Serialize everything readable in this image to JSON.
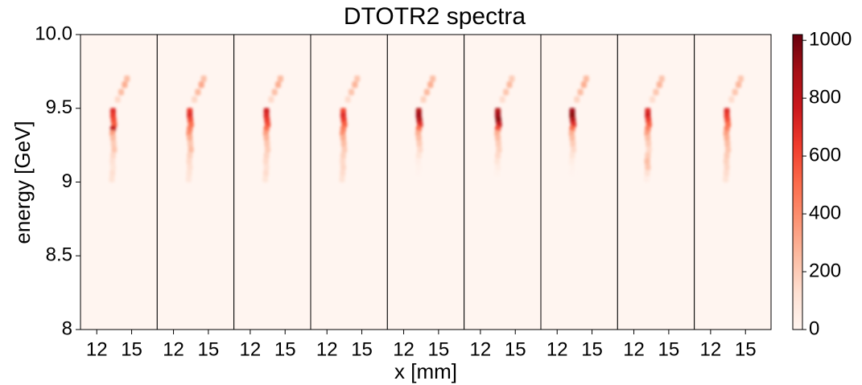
{
  "chart_data": {
    "type": "heatmap",
    "title": "DTOTR2 spectra",
    "xlabel": "x [mm]",
    "ylabel": "energy [GeV]",
    "colormap": "Reds",
    "ylim": [
      8,
      10
    ],
    "yticks": [
      8,
      8.5,
      9,
      9.5,
      {
        "value": 10,
        "label": "10.0"
      }
    ],
    "colorbar": {
      "lim": [
        0,
        1020
      ],
      "ticks": [
        0,
        200,
        400,
        600,
        800,
        1000
      ]
    },
    "panels": [
      {
        "xlim": [
          10.6,
          17.2
        ],
        "xticks": [
          12,
          15
        ],
        "x": [
          13.4,
          13.4,
          13.45,
          13.5,
          13.4,
          13.35,
          13.4,
          13.45,
          13.5,
          13.4,
          13.35,
          13.4,
          13.35,
          13.3,
          13.8,
          14.1,
          14.4,
          14.6
        ],
        "y": [
          9.48,
          9.45,
          9.42,
          9.39,
          9.36,
          9.33,
          9.3,
          9.26,
          9.22,
          9.18,
          9.14,
          9.1,
          9.06,
          9.02,
          9.56,
          9.61,
          9.66,
          9.7
        ],
        "values": [
          700,
          650,
          600,
          550,
          800,
          350,
          250,
          200,
          220,
          150,
          120,
          100,
          130,
          110,
          150,
          250,
          300,
          250
        ]
      },
      {
        "xlim": [
          10.6,
          17.2
        ],
        "xticks": [
          12,
          15
        ],
        "x": [
          13.4,
          13.4,
          13.45,
          13.5,
          13.4,
          13.35,
          13.4,
          13.45,
          13.5,
          13.4,
          13.35,
          13.4,
          13.35,
          13.3,
          13.8,
          14.1,
          14.4,
          14.6
        ],
        "y": [
          9.48,
          9.45,
          9.42,
          9.39,
          9.36,
          9.33,
          9.3,
          9.26,
          9.22,
          9.18,
          9.14,
          9.1,
          9.06,
          9.02,
          9.56,
          9.61,
          9.66,
          9.7
        ],
        "values": [
          650,
          700,
          600,
          500,
          450,
          400,
          300,
          220,
          250,
          180,
          150,
          130,
          110,
          90,
          160,
          260,
          320,
          240
        ]
      },
      {
        "xlim": [
          10.6,
          17.2
        ],
        "xticks": [
          12,
          15
        ],
        "x": [
          13.4,
          13.4,
          13.45,
          13.5,
          13.4,
          13.35,
          13.4,
          13.45,
          13.5,
          13.4,
          13.35,
          13.4,
          13.35,
          13.3,
          13.8,
          14.1,
          14.4,
          14.6
        ],
        "y": [
          9.48,
          9.45,
          9.42,
          9.39,
          9.36,
          9.33,
          9.3,
          9.26,
          9.22,
          9.18,
          9.14,
          9.1,
          9.06,
          9.02,
          9.56,
          9.61,
          9.66,
          9.7
        ],
        "values": [
          750,
          700,
          650,
          600,
          500,
          350,
          280,
          220,
          200,
          170,
          150,
          120,
          140,
          100,
          150,
          240,
          300,
          260
        ]
      },
      {
        "xlim": [
          10.6,
          17.2
        ],
        "xticks": [
          12,
          15
        ],
        "x": [
          13.4,
          13.4,
          13.45,
          13.5,
          13.4,
          13.35,
          13.4,
          13.45,
          13.5,
          13.4,
          13.35,
          13.4,
          13.35,
          13.3,
          13.8,
          14.1,
          14.4,
          14.6
        ],
        "y": [
          9.48,
          9.45,
          9.42,
          9.39,
          9.36,
          9.33,
          9.3,
          9.26,
          9.22,
          9.18,
          9.14,
          9.1,
          9.06,
          9.02,
          9.56,
          9.61,
          9.66,
          9.7
        ],
        "values": [
          600,
          700,
          650,
          550,
          450,
          400,
          300,
          250,
          200,
          180,
          150,
          160,
          140,
          110,
          140,
          230,
          280,
          220
        ]
      },
      {
        "xlim": [
          10.6,
          17.2
        ],
        "xticks": [
          12,
          15
        ],
        "x": [
          13.3,
          13.3,
          13.35,
          13.4,
          13.3,
          13.25,
          13.3,
          13.35,
          13.4,
          13.3,
          13.25,
          13.3,
          13.25,
          13.2,
          13.7,
          14.0,
          14.3,
          14.5
        ],
        "y": [
          9.48,
          9.45,
          9.42,
          9.39,
          9.36,
          9.33,
          9.3,
          9.26,
          9.22,
          9.18,
          9.14,
          9.1,
          9.06,
          9.02,
          9.56,
          9.61,
          9.66,
          9.7
        ],
        "values": [
          850,
          900,
          850,
          700,
          500,
          300,
          250,
          200,
          150,
          100,
          40,
          20,
          10,
          0,
          180,
          260,
          300,
          250
        ]
      },
      {
        "xlim": [
          10.6,
          17.2
        ],
        "xticks": [
          12,
          15
        ],
        "x": [
          13.5,
          13.5,
          13.55,
          13.6,
          13.5,
          13.45,
          13.5,
          13.55,
          13.6,
          13.5,
          13.45,
          13.5,
          13.45,
          13.4,
          13.9,
          14.2,
          14.5,
          14.7
        ],
        "y": [
          9.48,
          9.45,
          9.42,
          9.39,
          9.36,
          9.33,
          9.3,
          9.26,
          9.22,
          9.18,
          9.14,
          9.1,
          9.06,
          9.02,
          9.56,
          9.61,
          9.66,
          9.7
        ],
        "values": [
          850,
          900,
          950,
          800,
          600,
          300,
          250,
          200,
          180,
          150,
          100,
          50,
          20,
          0,
          140,
          220,
          260,
          200
        ]
      },
      {
        "xlim": [
          10.6,
          17.2
        ],
        "xticks": [
          12,
          15
        ],
        "x": [
          13.3,
          13.3,
          13.35,
          13.4,
          13.3,
          13.25,
          13.3,
          13.35,
          13.4,
          13.3,
          13.25,
          13.3,
          13.25,
          13.2,
          13.7,
          14.0,
          14.3,
          14.5
        ],
        "y": [
          9.48,
          9.45,
          9.42,
          9.39,
          9.36,
          9.33,
          9.3,
          9.26,
          9.22,
          9.18,
          9.14,
          9.1,
          9.06,
          9.02,
          9.56,
          9.61,
          9.66,
          9.7
        ],
        "values": [
          900,
          950,
          850,
          700,
          500,
          300,
          250,
          200,
          150,
          100,
          50,
          20,
          10,
          0,
          170,
          250,
          300,
          260
        ]
      },
      {
        "xlim": [
          10.6,
          17.2
        ],
        "xticks": [
          12,
          15
        ],
        "x": [
          13.2,
          13.2,
          13.25,
          13.3,
          13.2,
          13.15,
          13.2,
          13.25,
          13.3,
          13.2,
          13.15,
          13.2,
          13.15,
          13.1,
          13.6,
          13.9,
          14.2,
          14.4
        ],
        "y": [
          9.48,
          9.45,
          9.42,
          9.39,
          9.36,
          9.33,
          9.3,
          9.26,
          9.22,
          9.18,
          9.14,
          9.1,
          9.06,
          9.02,
          9.56,
          9.61,
          9.66,
          9.7
        ],
        "values": [
          700,
          750,
          650,
          550,
          450,
          350,
          250,
          200,
          150,
          200,
          250,
          220,
          120,
          40,
          140,
          220,
          280,
          230
        ]
      },
      {
        "xlim": [
          10.6,
          17.2
        ],
        "xticks": [
          12,
          15
        ],
        "x": [
          13.4,
          13.4,
          13.45,
          13.5,
          13.4,
          13.35,
          13.4,
          13.45,
          13.5,
          13.4,
          13.35,
          13.4,
          13.35,
          13.3,
          13.8,
          14.1,
          14.4,
          14.6
        ],
        "y": [
          9.48,
          9.45,
          9.42,
          9.39,
          9.36,
          9.33,
          9.3,
          9.26,
          9.22,
          9.18,
          9.14,
          9.1,
          9.06,
          9.02,
          9.56,
          9.61,
          9.66,
          9.7
        ],
        "values": [
          700,
          650,
          600,
          500,
          450,
          350,
          300,
          250,
          220,
          200,
          180,
          160,
          140,
          110,
          140,
          220,
          270,
          220
        ]
      }
    ]
  }
}
